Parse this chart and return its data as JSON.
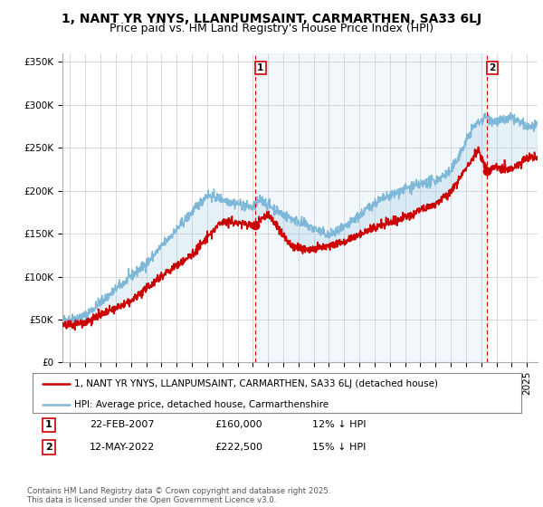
{
  "title": "1, NANT YR YNYS, LLANPUMSAINT, CARMARTHEN, SA33 6LJ",
  "subtitle": "Price paid vs. HM Land Registry's House Price Index (HPI)",
  "ylabel_ticks": [
    "£0",
    "£50K",
    "£100K",
    "£150K",
    "£200K",
    "£250K",
    "£300K",
    "£350K"
  ],
  "ytick_vals": [
    0,
    50000,
    100000,
    150000,
    200000,
    250000,
    300000,
    350000
  ],
  "ylim": [
    0,
    360000
  ],
  "xlim_start": 1994.5,
  "xlim_end": 2025.7,
  "hpi_color": "#7eb8d8",
  "price_color": "#cc0000",
  "vline_color": "#cc0000",
  "shade_color": "#ddeeff",
  "grid_color": "#cccccc",
  "background_color": "#ffffff",
  "sale1_x": 2007.14,
  "sale1_y": 160000,
  "sale2_x": 2022.37,
  "sale2_y": 222500,
  "legend_line1": "1, NANT YR YNYS, LLANPUMSAINT, CARMARTHEN, SA33 6LJ (detached house)",
  "legend_line2": "HPI: Average price, detached house, Carmarthenshire",
  "table_row1": [
    "1",
    "22-FEB-2007",
    "£160,000",
    "12% ↓ HPI"
  ],
  "table_row2": [
    "2",
    "12-MAY-2022",
    "£222,500",
    "15% ↓ HPI"
  ],
  "footnote": "Contains HM Land Registry data © Crown copyright and database right 2025.\nThis data is licensed under the Open Government Licence v3.0.",
  "title_fontsize": 10,
  "subtitle_fontsize": 9,
  "tick_fontsize": 7.5,
  "legend_fontsize": 8
}
